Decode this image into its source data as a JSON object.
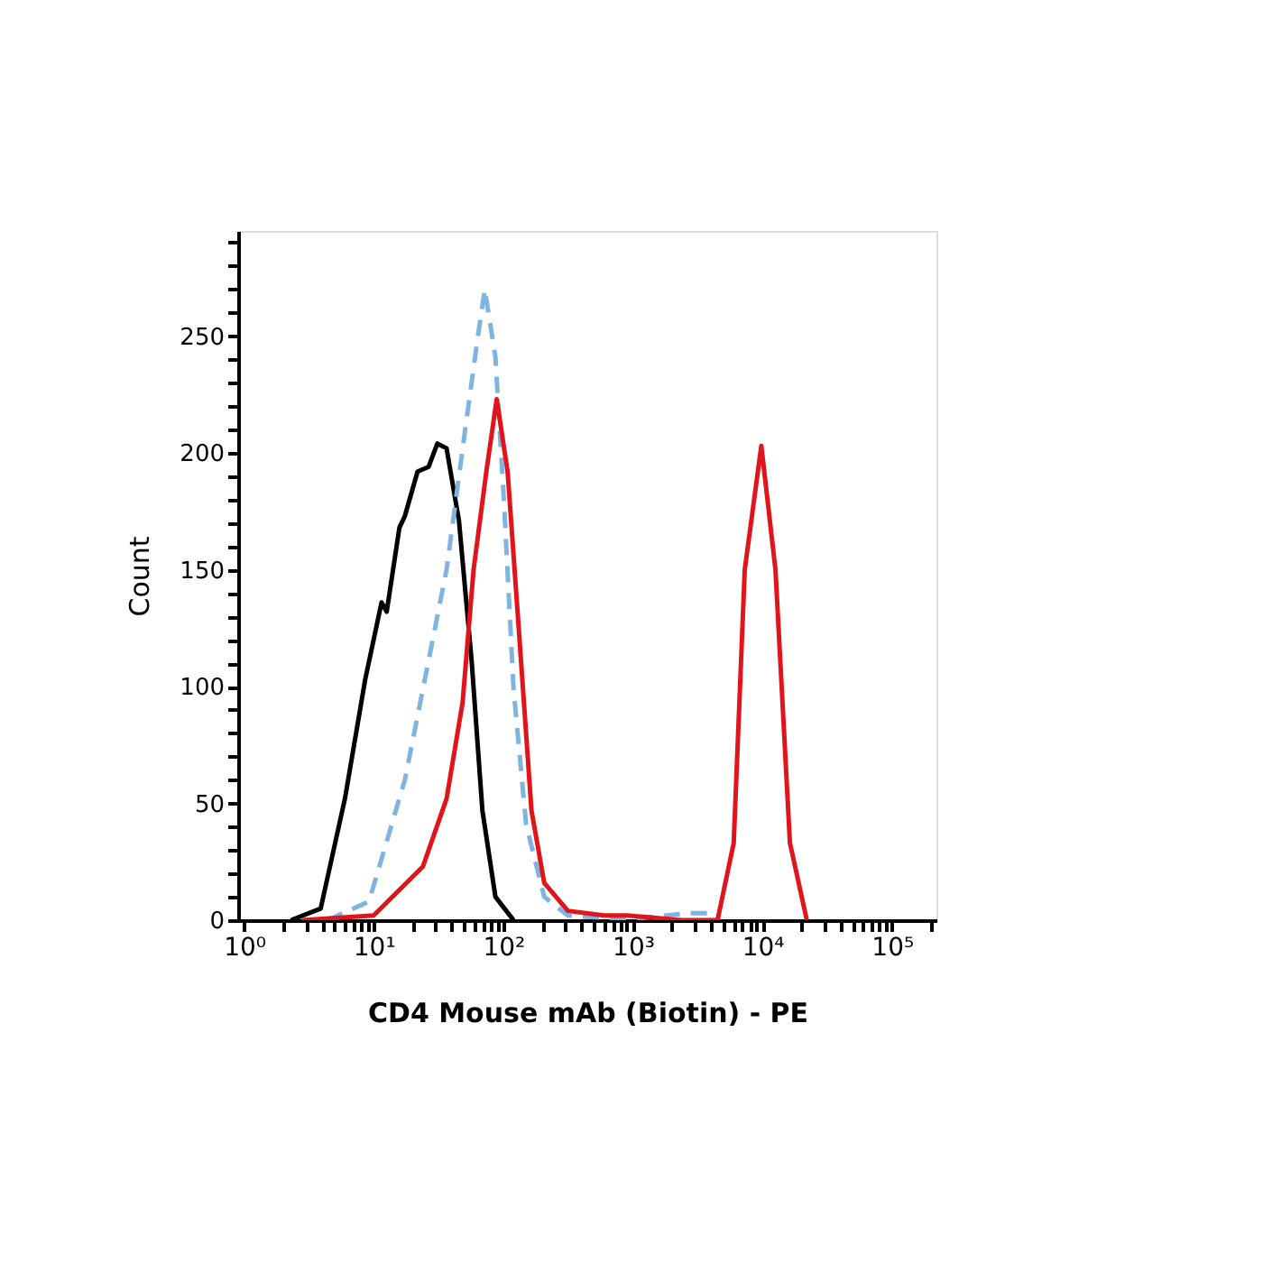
{
  "chart_data": {
    "type": "line",
    "xlabel": "CD4 Mouse mAb (Biotin) - PE",
    "ylabel": "Count",
    "log": "x",
    "grid": false,
    "legend": false,
    "marker": "none",
    "xlim": [
      0.9,
      220000
    ],
    "xticks": [
      {
        "value": 1,
        "label": "10⁰"
      },
      {
        "value": 2,
        "label": null
      },
      {
        "value": 3,
        "label": null
      },
      {
        "value": 4,
        "label": null
      },
      {
        "value": 5,
        "label": null
      },
      {
        "value": 6,
        "label": null
      },
      {
        "value": 7,
        "label": null
      },
      {
        "value": 8,
        "label": null
      },
      {
        "value": 9,
        "label": null
      },
      {
        "value": 10,
        "label": "10¹"
      },
      {
        "value": 20,
        "label": null
      },
      {
        "value": 30,
        "label": null
      },
      {
        "value": 40,
        "label": null
      },
      {
        "value": 50,
        "label": null
      },
      {
        "value": 60,
        "label": null
      },
      {
        "value": 70,
        "label": null
      },
      {
        "value": 80,
        "label": null
      },
      {
        "value": 90,
        "label": null
      },
      {
        "value": 100,
        "label": "10²"
      },
      {
        "value": 200,
        "label": null
      },
      {
        "value": 300,
        "label": null
      },
      {
        "value": 400,
        "label": null
      },
      {
        "value": 500,
        "label": null
      },
      {
        "value": 600,
        "label": null
      },
      {
        "value": 700,
        "label": null
      },
      {
        "value": 800,
        "label": null
      },
      {
        "value": 900,
        "label": null
      },
      {
        "value": 1000,
        "label": "10³"
      },
      {
        "value": 2000,
        "label": null
      },
      {
        "value": 3000,
        "label": null
      },
      {
        "value": 4000,
        "label": null
      },
      {
        "value": 5000,
        "label": null
      },
      {
        "value": 6000,
        "label": null
      },
      {
        "value": 7000,
        "label": null
      },
      {
        "value": 8000,
        "label": null
      },
      {
        "value": 9000,
        "label": null
      },
      {
        "value": 10000,
        "label": "10⁴"
      },
      {
        "value": 20000,
        "label": null
      },
      {
        "value": 30000,
        "label": null
      },
      {
        "value": 40000,
        "label": null
      },
      {
        "value": 50000,
        "label": null
      },
      {
        "value": 60000,
        "label": null
      },
      {
        "value": 70000,
        "label": null
      },
      {
        "value": 80000,
        "label": null
      },
      {
        "value": 90000,
        "label": null
      },
      {
        "value": 100000,
        "label": "10⁵"
      },
      {
        "value": 200000,
        "label": null
      }
    ],
    "ylim": [
      0,
      295
    ],
    "yticks": [
      0,
      {
        "value": 10,
        "label": null
      },
      {
        "value": 20,
        "label": null
      },
      {
        "value": 30,
        "label": null
      },
      {
        "value": 40,
        "label": null
      },
      50,
      {
        "value": 60,
        "label": null
      },
      {
        "value": 70,
        "label": null
      },
      {
        "value": 80,
        "label": null
      },
      {
        "value": 90,
        "label": null
      },
      100,
      {
        "value": 110,
        "label": null
      },
      {
        "value": 120,
        "label": null
      },
      {
        "value": 130,
        "label": null
      },
      {
        "value": 140,
        "label": null
      },
      150,
      {
        "value": 160,
        "label": null
      },
      {
        "value": 170,
        "label": null
      },
      {
        "value": 180,
        "label": null
      },
      {
        "value": 190,
        "label": null
      },
      200,
      {
        "value": 210,
        "label": null
      },
      {
        "value": 220,
        "label": null
      },
      {
        "value": 230,
        "label": null
      },
      {
        "value": 240,
        "label": null
      },
      250,
      {
        "value": 260,
        "label": null
      },
      {
        "value": 270,
        "label": null
      },
      {
        "value": 280,
        "label": null
      },
      {
        "value": 290,
        "label": null
      }
    ],
    "series": [
      {
        "color": "#000000",
        "line_style": "solid",
        "x": [
          2.3,
          3.9,
          6.0,
          8.6,
          11.5,
          12.6,
          15.8,
          17.4,
          21.8,
          26.5,
          31,
          36.5,
          45.5,
          57,
          69,
          87,
          120
        ],
        "values": [
          0,
          5,
          52,
          103,
          136,
          132,
          168,
          173,
          192,
          194,
          204,
          202,
          171,
          111,
          47,
          10,
          0
        ]
      },
      {
        "color": "#7fb3e0",
        "line_style": "dashed",
        "x": [
          4.4,
          9.2,
          17.4,
          26.5,
          36.5,
          50,
          63,
          72,
          87,
          102,
          120,
          150,
          207,
          315,
          600,
          1200,
          2700,
          3800,
          4200
        ],
        "values": [
          0,
          8,
          60,
          111,
          150,
          207,
          248,
          270,
          241,
          176,
          99,
          41,
          10,
          2,
          1,
          1,
          3,
          3,
          0
        ]
      },
      {
        "color": "#e0141a",
        "line_style": "solid",
        "x": [
          2.8,
          10,
          24,
          36.5,
          48.5,
          59,
          74,
          89,
          108,
          132,
          165,
          207,
          315,
          600,
          900,
          2400,
          4500,
          6000,
          7300,
          9800,
          12600,
          16300,
          22000
        ],
        "values": [
          0,
          2,
          23,
          52,
          93,
          150,
          192,
          223,
          192,
          124,
          47,
          16,
          4,
          2,
          2,
          0,
          0,
          33,
          150,
          203,
          150,
          33,
          0
        ]
      }
    ]
  }
}
